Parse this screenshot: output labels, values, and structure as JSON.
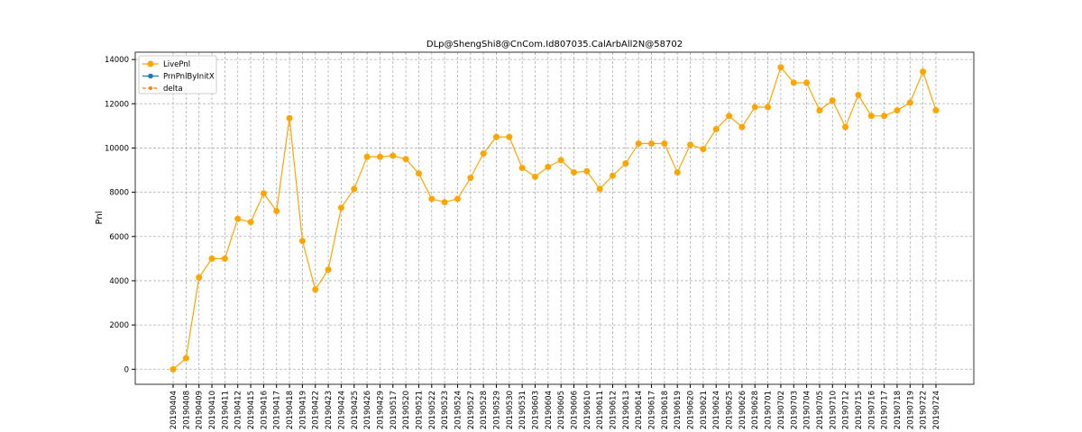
{
  "chart_data": {
    "type": "line",
    "title": "DLp@ShengShi8@CnCom.Id807035.CalArbAll2N@58702",
    "y_label": "Pnl",
    "categories": [
      "20190404",
      "20190408",
      "20190409",
      "20190410",
      "20190411",
      "20190412",
      "20190415",
      "20190416",
      "20190417",
      "20190418",
      "20190419",
      "20190422",
      "20190423",
      "20190424",
      "20190425",
      "20190426",
      "20190429",
      "20190517",
      "20190520",
      "20190521",
      "20190522",
      "20190523",
      "20190524",
      "20190527",
      "20190528",
      "20190529",
      "20190530",
      "20190531",
      "20190603",
      "20190604",
      "20190605",
      "20190606",
      "20190610",
      "20190611",
      "20190612",
      "20190613",
      "20190614",
      "20190617",
      "20190618",
      "20190619",
      "20190620",
      "20190621",
      "20190624",
      "20190625",
      "20190626",
      "20190628",
      "20190701",
      "20190702",
      "20190703",
      "20190704",
      "20190705",
      "20190710",
      "20190712",
      "20190715",
      "20190716",
      "20190717",
      "20190718",
      "20190719",
      "20190722",
      "20190724"
    ],
    "series": [
      {
        "name": "LivePnl",
        "color": "#ffa500",
        "values": [
          0,
          500,
          4150,
          5000,
          5000,
          6800,
          6650,
          7950,
          7150,
          11350,
          5800,
          3600,
          4500,
          7300,
          8150,
          9600,
          9600,
          9650,
          9500,
          8850,
          7700,
          7550,
          7700,
          8650,
          9750,
          10500,
          10500,
          9100,
          8700,
          9150,
          9450,
          8900,
          8950,
          8150,
          8750,
          9300,
          10200,
          10200,
          10200,
          8900,
          10150,
          9950,
          10850,
          11450,
          10950,
          11850,
          11850,
          13650,
          12950,
          12950,
          11700,
          12150,
          10950,
          12400,
          11450,
          11450,
          11700,
          12050,
          13450,
          11700
        ]
      },
      {
        "name": "PrnPnlByInitX",
        "color": "#1f77b4",
        "values": [
          null,
          null,
          null,
          null,
          null,
          null,
          null,
          null,
          null,
          null,
          null,
          null,
          null,
          null,
          null,
          null,
          null,
          null,
          null,
          null,
          null,
          null,
          null,
          null,
          null,
          null,
          null,
          null,
          null,
          null,
          null,
          null,
          null,
          null,
          null,
          null,
          null,
          null,
          null,
          null,
          null,
          null,
          null,
          null,
          null,
          null,
          null,
          null,
          null,
          null,
          null,
          null,
          null,
          null,
          null,
          null,
          null,
          null,
          null,
          null
        ]
      },
      {
        "name": "delta",
        "color": "#ff7f0e",
        "dashed": true,
        "values": [
          null,
          null,
          null,
          null,
          null,
          null,
          null,
          null,
          null,
          null,
          null,
          null,
          null,
          null,
          null,
          null,
          null,
          null,
          null,
          null,
          null,
          null,
          null,
          null,
          null,
          null,
          null,
          null,
          null,
          null,
          null,
          null,
          null,
          null,
          null,
          null,
          null,
          null,
          null,
          null,
          null,
          null,
          null,
          null,
          null,
          null,
          null,
          null,
          null,
          null,
          null,
          null,
          null,
          null,
          null,
          null,
          null,
          null,
          null,
          null
        ]
      }
    ],
    "ylim": [
      -680,
      14330
    ],
    "yticks": [
      0,
      2000,
      4000,
      6000,
      8000,
      10000,
      12000,
      14000
    ],
    "grid": true,
    "legend": "upper-left"
  }
}
